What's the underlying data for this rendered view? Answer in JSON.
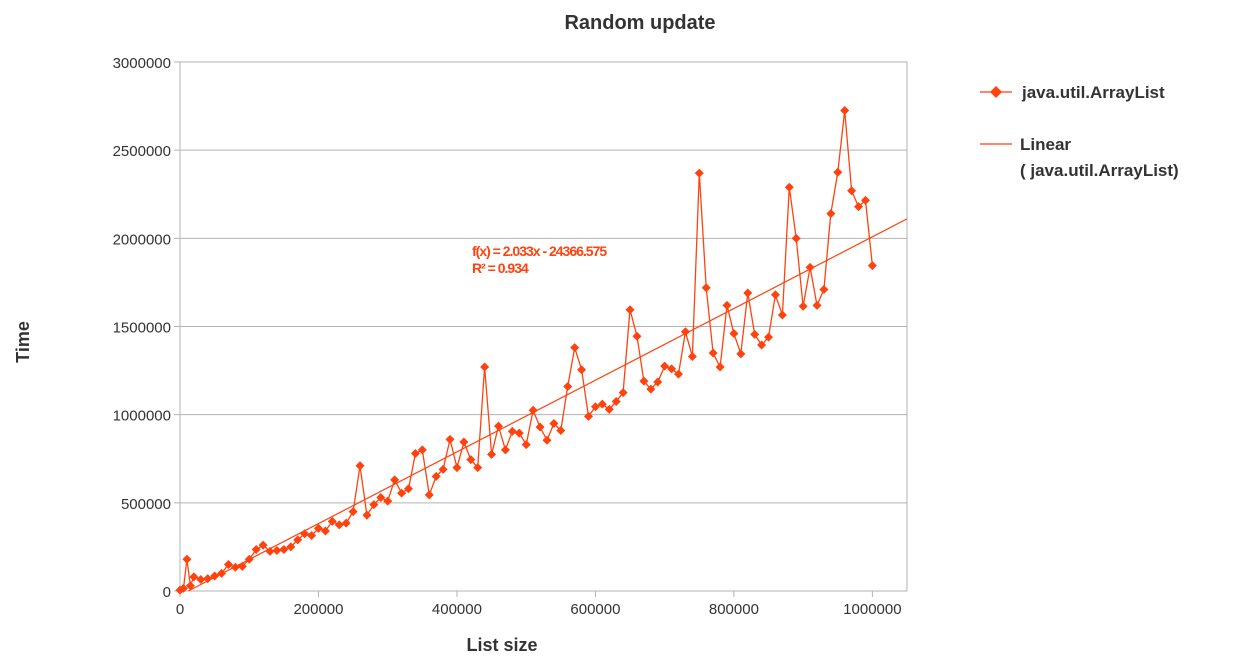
{
  "chart_data": {
    "type": "scatter",
    "title": "Random update",
    "xlabel": "List size",
    "ylabel": "Time",
    "xlim": [
      0,
      1050000
    ],
    "ylim": [
      0,
      3000000
    ],
    "xticks": [
      0,
      200000,
      400000,
      600000,
      800000,
      1000000
    ],
    "yticks": [
      0,
      500000,
      1000000,
      1500000,
      2000000,
      2500000,
      3000000
    ],
    "grid": true,
    "legend_position": "right",
    "series": [
      {
        "name": "java.util.ArrayList",
        "color": "#ff420e",
        "marker": "diamond",
        "connected": true,
        "points": [
          [
            0,
            5000
          ],
          [
            5000,
            15000
          ],
          [
            10000,
            180000
          ],
          [
            15000,
            30000
          ],
          [
            20000,
            80000
          ],
          [
            30000,
            65000
          ],
          [
            40000,
            70000
          ],
          [
            50000,
            85000
          ],
          [
            60000,
            100000
          ],
          [
            70000,
            150000
          ],
          [
            80000,
            135000
          ],
          [
            90000,
            140000
          ],
          [
            100000,
            180000
          ],
          [
            110000,
            235000
          ],
          [
            120000,
            260000
          ],
          [
            130000,
            225000
          ],
          [
            140000,
            230000
          ],
          [
            150000,
            235000
          ],
          [
            160000,
            250000
          ],
          [
            170000,
            290000
          ],
          [
            180000,
            325000
          ],
          [
            190000,
            315000
          ],
          [
            200000,
            355000
          ],
          [
            210000,
            340000
          ],
          [
            220000,
            395000
          ],
          [
            230000,
            375000
          ],
          [
            240000,
            385000
          ],
          [
            250000,
            450000
          ],
          [
            260000,
            710000
          ],
          [
            270000,
            430000
          ],
          [
            280000,
            490000
          ],
          [
            290000,
            530000
          ],
          [
            300000,
            510000
          ],
          [
            310000,
            630000
          ],
          [
            320000,
            555000
          ],
          [
            330000,
            580000
          ],
          [
            340000,
            780000
          ],
          [
            350000,
            800000
          ],
          [
            360000,
            545000
          ],
          [
            370000,
            650000
          ],
          [
            380000,
            690000
          ],
          [
            390000,
            860000
          ],
          [
            400000,
            700000
          ],
          [
            410000,
            845000
          ],
          [
            420000,
            745000
          ],
          [
            430000,
            700000
          ],
          [
            440000,
            1270000
          ],
          [
            450000,
            775000
          ],
          [
            460000,
            935000
          ],
          [
            470000,
            800000
          ],
          [
            480000,
            905000
          ],
          [
            490000,
            895000
          ],
          [
            500000,
            830000
          ],
          [
            510000,
            1025000
          ],
          [
            520000,
            930000
          ],
          [
            530000,
            855000
          ],
          [
            540000,
            950000
          ],
          [
            550000,
            910000
          ],
          [
            560000,
            1160000
          ],
          [
            570000,
            1380000
          ],
          [
            580000,
            1255000
          ],
          [
            590000,
            990000
          ],
          [
            600000,
            1045000
          ],
          [
            610000,
            1060000
          ],
          [
            620000,
            1030000
          ],
          [
            630000,
            1075000
          ],
          [
            640000,
            1125000
          ],
          [
            650000,
            1595000
          ],
          [
            660000,
            1445000
          ],
          [
            670000,
            1190000
          ],
          [
            680000,
            1145000
          ],
          [
            690000,
            1185000
          ],
          [
            700000,
            1275000
          ],
          [
            710000,
            1260000
          ],
          [
            720000,
            1230000
          ],
          [
            730000,
            1470000
          ],
          [
            740000,
            1330000
          ],
          [
            750000,
            2370000
          ],
          [
            760000,
            1720000
          ],
          [
            770000,
            1350000
          ],
          [
            780000,
            1270000
          ],
          [
            790000,
            1620000
          ],
          [
            800000,
            1460000
          ],
          [
            810000,
            1345000
          ],
          [
            820000,
            1690000
          ],
          [
            830000,
            1455000
          ],
          [
            840000,
            1395000
          ],
          [
            850000,
            1440000
          ],
          [
            860000,
            1680000
          ],
          [
            870000,
            1565000
          ],
          [
            880000,
            2290000
          ],
          [
            890000,
            2000000
          ],
          [
            900000,
            1615000
          ],
          [
            910000,
            1835000
          ],
          [
            920000,
            1620000
          ],
          [
            930000,
            1710000
          ],
          [
            940000,
            2140000
          ],
          [
            950000,
            2375000
          ],
          [
            960000,
            2725000
          ],
          [
            970000,
            2270000
          ],
          [
            980000,
            2180000
          ],
          [
            990000,
            2215000
          ],
          [
            1000000,
            1845000
          ]
        ]
      }
    ],
    "trendline": {
      "name": "Linear ( java.util.ArrayList)",
      "type": "linear",
      "slope": 2.033,
      "intercept": -24366.575,
      "equation": "f(x) = 2.033x - 24366.575",
      "r_squared": "R² = 0.934",
      "color": "#ff420e"
    }
  },
  "legend": {
    "series_label": "java.util.ArrayList",
    "trend_label_line1": "Linear",
    "trend_label_line2": "( java.util.ArrayList)"
  }
}
